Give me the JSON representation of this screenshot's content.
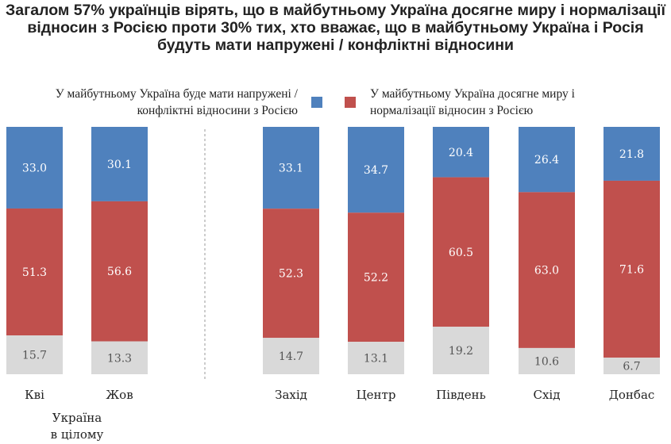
{
  "title": "Загалом 57% українців вірять, що в майбутньому Україна досягне миру і нормалізації відносин з Росією проти 30% тих, хто вважає, що в майбутньому Україна і Росія будуть мати напружені / конфліктні відносини",
  "chart_data": {
    "type": "bar",
    "stacked": true,
    "percent": true,
    "categories": [
      "Кві",
      "Жов",
      "Захід",
      "Центр",
      "Південь",
      "Схід",
      "Донбас"
    ],
    "group_label": "Україна в цілому",
    "series": [
      {
        "name": "У майбутньому Україна буде мати напружені / конфліктні відносини з Росією",
        "color": "#4f81bd",
        "values": [
          33.0,
          30.1,
          33.1,
          34.7,
          20.4,
          26.4,
          21.8
        ]
      },
      {
        "name": "У майбутньому Україна досягне миру і нормалізації відносин з Росією",
        "color": "#c0504d",
        "values": [
          51.3,
          56.6,
          52.3,
          52.2,
          60.5,
          63.0,
          71.6
        ]
      },
      {
        "color": "#d9d9d9",
        "values": [
          15.7,
          13.3,
          14.7,
          13.1,
          19.2,
          10.6,
          6.7
        ]
      }
    ],
    "legend": "top",
    "ylim": [
      0,
      100
    ],
    "grid": false
  }
}
